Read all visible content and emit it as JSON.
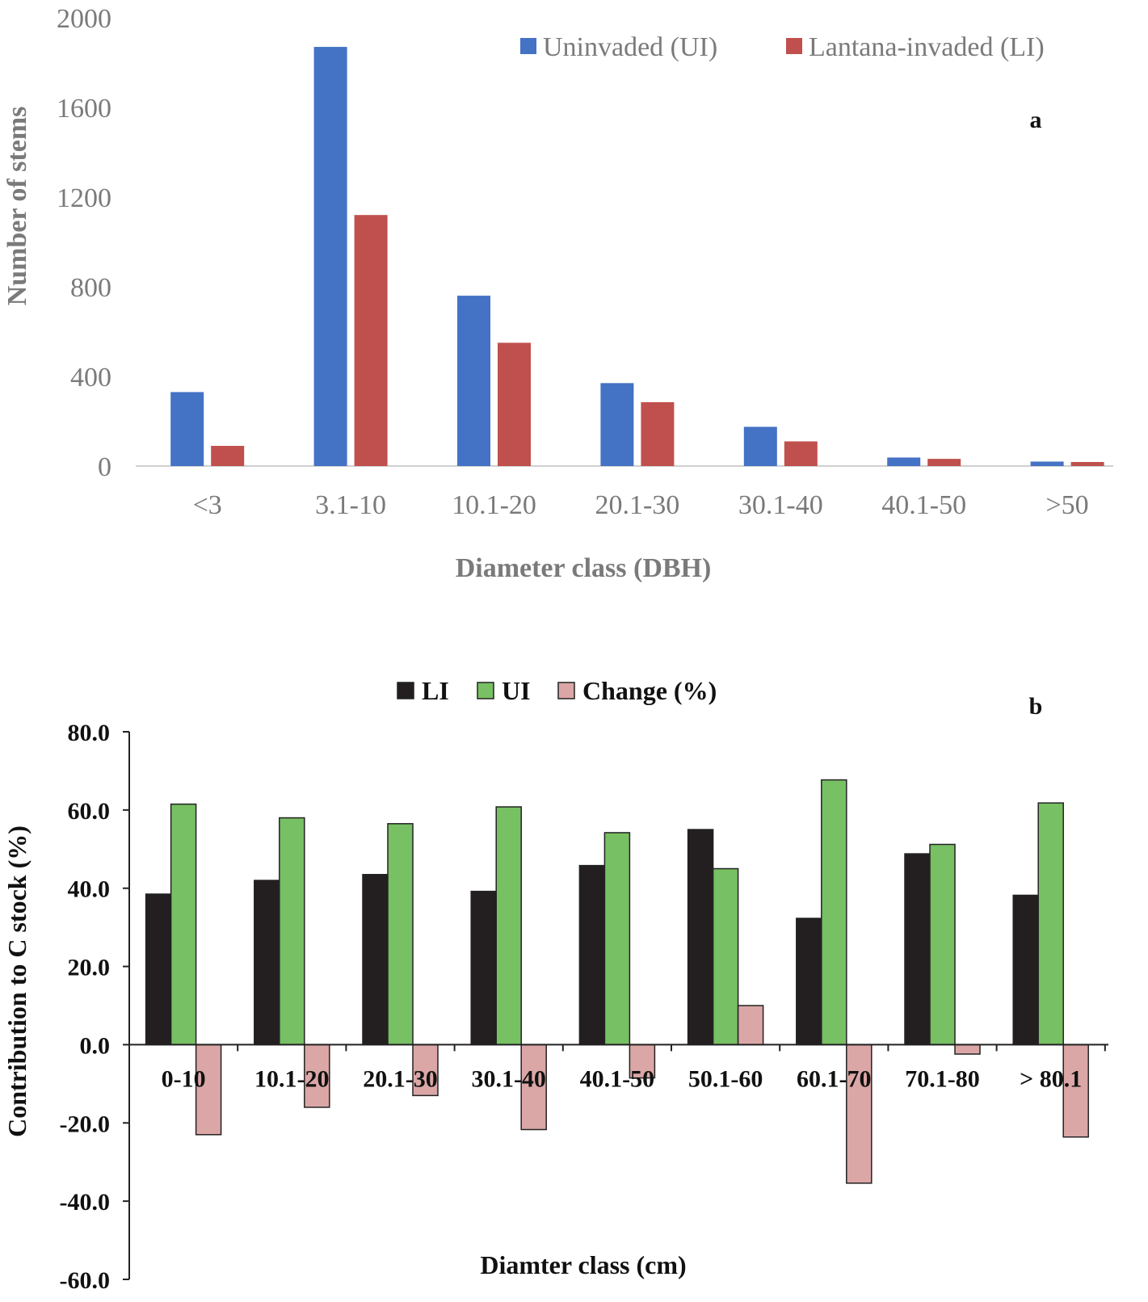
{
  "chart_data": [
    {
      "type": "bar",
      "panel_label": "a",
      "title": "",
      "xlabel": "Diameter class (DBH)",
      "ylabel": "Number of stems",
      "ylim": [
        0,
        2000
      ],
      "yticks": [
        "0",
        "400",
        "800",
        "1200",
        "1600",
        "2000"
      ],
      "ytick_values": [
        0,
        400,
        800,
        1200,
        1600,
        2000
      ],
      "categories": [
        "<3",
        "3.1-10",
        "10.1-20",
        "20.1-30",
        "30.1-40",
        "40.1-50",
        ">50"
      ],
      "legend_position": "top-right",
      "series": [
        {
          "name": "Uninvaded (UI)",
          "color": "#4472c4",
          "values": [
            330,
            1870,
            760,
            370,
            175,
            38,
            20
          ]
        },
        {
          "name": "Lantana-invaded (LI)",
          "color": "#c0504d",
          "values": [
            90,
            1120,
            550,
            285,
            110,
            32,
            18
          ]
        }
      ]
    },
    {
      "type": "bar",
      "panel_label": "b",
      "title": "",
      "xlabel": "Diamter class (cm)",
      "ylabel": "Contribution to C stock (%)",
      "ylim": [
        -60,
        80
      ],
      "yticks": [
        "-60.0",
        "-40.0",
        "-20.0",
        "0.0",
        "20.0",
        "40.0",
        "60.0",
        "80.0"
      ],
      "ytick_values": [
        -60,
        -40,
        -20,
        0,
        20,
        40,
        60,
        80
      ],
      "categories": [
        "0-10",
        "10.1-20",
        "20.1-30",
        "30.1-40",
        "40.1-50",
        "50.1-60",
        "60.1-70",
        "70.1-80",
        "> 80.1"
      ],
      "legend_position": "top-center",
      "series": [
        {
          "name": "LI",
          "color": "#231f20",
          "values": [
            38.5,
            42.0,
            43.5,
            39.2,
            45.8,
            55.0,
            32.3,
            48.8,
            38.2
          ]
        },
        {
          "name": "UI",
          "color": "#77c063",
          "values": [
            61.5,
            58.0,
            56.5,
            60.8,
            54.2,
            45.0,
            67.7,
            51.2,
            61.8
          ]
        },
        {
          "name": "Change (%)",
          "color": "#dba7a6",
          "values": [
            -23.0,
            -16.0,
            -13.0,
            -21.7,
            -8.5,
            10.0,
            -35.4,
            -2.4,
            -23.6
          ]
        }
      ]
    }
  ]
}
